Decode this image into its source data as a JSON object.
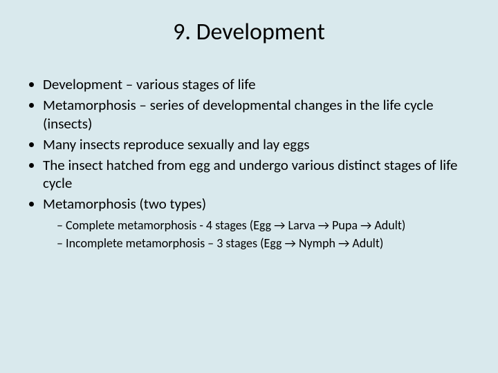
{
  "slide": {
    "background_color": "#d9e9ed",
    "text_color": "#000000",
    "title": "9. Development",
    "title_fontsize": 34,
    "bullet_fontsize": 21,
    "sub_bullet_fontsize": 18,
    "bullets": [
      "Development – various stages of life",
      "Metamorphosis – series of developmental changes in the life cycle (insects)",
      "Many insects reproduce sexually and lay eggs",
      "The insect hatched from egg and undergo various distinct stages of life cycle",
      "Metamorphosis (two types)"
    ],
    "sub_bullets": [
      "Complete metamorphosis - 4 stages (Egg → Larva → Pupa → Adult)",
      "Incomplete metamorphosis – 3 stages (Egg → Nymph → Adult)"
    ]
  }
}
